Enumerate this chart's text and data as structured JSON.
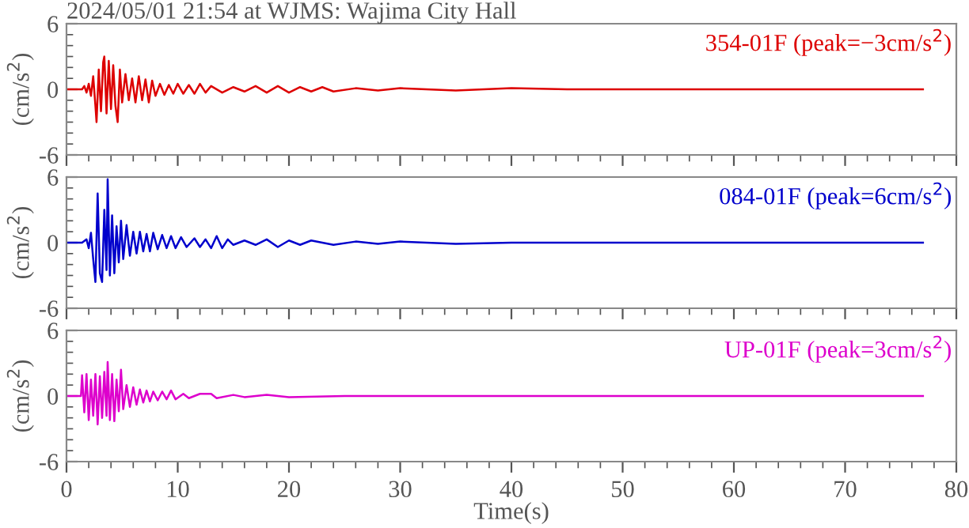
{
  "chart_data": [
    {
      "type": "line",
      "title": "2024/05/01 21:54 at WJMS: Wajima City Hall",
      "ylabel": "(cm/s$^{2}$)",
      "annotations": [
        "354-01F (peak=−3cm/s$^{2}$)"
      ],
      "xlim": [
        0,
        80
      ],
      "xticks": [
        0,
        10,
        20,
        30,
        40,
        50,
        60,
        70,
        80
      ],
      "ylim": [
        -6,
        6
      ],
      "yticks": [
        -6,
        0,
        6
      ],
      "tick_labels": "y",
      "series": [
        {
          "color": "#dd0000",
          "x": [
            0,
            1.4,
            1.6,
            1.8,
            2.0,
            2.2,
            2.4,
            2.6,
            2.7,
            2.9,
            3.1,
            3.3,
            3.4,
            3.6,
            3.8,
            4.0,
            4.2,
            4.4,
            4.6,
            4.8,
            5.0,
            5.3,
            5.6,
            5.9,
            6.2,
            6.5,
            6.8,
            7.1,
            7.4,
            7.7,
            8.0,
            8.4,
            8.8,
            9.2,
            9.6,
            10.0,
            10.5,
            11,
            11.5,
            12,
            12.5,
            13,
            14,
            15,
            16,
            17,
            18,
            19,
            20,
            21,
            22,
            23,
            24,
            26,
            28,
            30,
            35,
            40,
            45,
            50,
            60,
            77
          ],
          "values": [
            0,
            0,
            0.3,
            -0.3,
            0.5,
            -0.6,
            1.2,
            -1.5,
            -3.0,
            1.8,
            -2.0,
            2.5,
            3.0,
            -2.2,
            2.6,
            -1.8,
            2.2,
            -1.5,
            -3.0,
            1.8,
            -1.2,
            1.4,
            -1.0,
            1.0,
            -1.2,
            1.2,
            -1.0,
            0.9,
            -1.2,
            0.8,
            -0.6,
            0.5,
            -0.5,
            0.4,
            -0.4,
            0.5,
            -0.4,
            0.4,
            -0.4,
            0.5,
            -0.3,
            0.3,
            -0.3,
            0.2,
            -0.2,
            0.3,
            -0.3,
            0.3,
            -0.3,
            0.2,
            -0.2,
            0.2,
            -0.2,
            0.1,
            -0.1,
            0.1,
            -0.1,
            0.1,
            0,
            0,
            0,
            0
          ]
        }
      ]
    },
    {
      "type": "line",
      "ylabel": "(cm/s$^{2}$)",
      "annotations": [
        "084-01F (peak=6cm/s$^{2}$)"
      ],
      "xlim": [
        0,
        80
      ],
      "xticks": [
        0,
        10,
        20,
        30,
        40,
        50,
        60,
        70,
        80
      ],
      "ylim": [
        -6,
        6
      ],
      "yticks": [
        -6,
        0,
        6
      ],
      "tick_labels": "y",
      "series": [
        {
          "color": "#0000cc",
          "x": [
            0,
            1.4,
            1.8,
            2.0,
            2.2,
            2.4,
            2.6,
            2.8,
            3.0,
            3.2,
            3.4,
            3.6,
            3.7,
            3.9,
            4.1,
            4.3,
            4.5,
            4.7,
            4.9,
            5.1,
            5.4,
            5.7,
            6.0,
            6.3,
            6.6,
            6.9,
            7.2,
            7.5,
            7.8,
            8.2,
            8.6,
            9.0,
            9.4,
            9.8,
            10.3,
            10.8,
            11.5,
            12,
            12.5,
            13,
            13.5,
            14,
            14.5,
            15,
            16,
            17,
            18,
            19,
            20,
            21,
            22,
            24,
            26,
            28,
            30,
            35,
            40,
            50,
            77
          ],
          "values": [
            0,
            0,
            0.3,
            -0.5,
            0.9,
            -1.5,
            -3.6,
            4.5,
            -2.8,
            -3.6,
            3.0,
            -2.5,
            5.8,
            -3.0,
            2.5,
            -2.8,
            1.5,
            -1.8,
            2.0,
            -1.5,
            1.6,
            -1.2,
            1.0,
            -1.0,
            1.0,
            -0.8,
            0.8,
            -0.8,
            0.9,
            -0.6,
            0.7,
            -0.5,
            0.6,
            -0.5,
            0.5,
            -0.4,
            0.4,
            -0.4,
            0.3,
            -0.5,
            0.6,
            -0.5,
            0.3,
            -0.2,
            0.2,
            -0.2,
            0.3,
            -0.4,
            0.2,
            -0.2,
            0.2,
            -0.2,
            0.1,
            -0.1,
            0.1,
            -0.1,
            0,
            0,
            0
          ]
        }
      ]
    },
    {
      "type": "line",
      "xlabel": "Time(s)",
      "ylabel": "(cm/s$^{2}$)",
      "annotations": [
        "UP-01F (peak=3cm/s$^{2}$)"
      ],
      "xlim": [
        0,
        80
      ],
      "xticks": [
        0,
        10,
        20,
        30,
        40,
        50,
        60,
        70,
        80
      ],
      "ylim": [
        -6,
        6
      ],
      "yticks": [
        -6,
        0,
        6
      ],
      "series": [
        {
          "color": "#dd00cc",
          "x": [
            0,
            1.3,
            1.4,
            1.6,
            1.8,
            2.0,
            2.2,
            2.4,
            2.6,
            2.8,
            3.0,
            3.2,
            3.4,
            3.6,
            3.7,
            3.9,
            4.1,
            4.3,
            4.5,
            4.7,
            4.9,
            5.1,
            5.4,
            5.7,
            6.0,
            6.3,
            6.6,
            6.9,
            7.2,
            7.5,
            7.8,
            8.2,
            8.6,
            9.0,
            9.4,
            9.8,
            10.5,
            11,
            12,
            13,
            13.5,
            15,
            16,
            18,
            20,
            25,
            30,
            77
          ],
          "values": [
            0,
            0,
            1.9,
            -1.5,
            2.0,
            -2.2,
            1.5,
            -1.8,
            2.0,
            -2.6,
            1.8,
            -2.0,
            2.2,
            -1.8,
            3.1,
            -2.2,
            2.0,
            -2.3,
            1.5,
            -1.4,
            2.4,
            -1.2,
            1.0,
            -1.0,
            0.8,
            -0.8,
            0.6,
            -0.6,
            0.5,
            -0.5,
            0.4,
            -0.4,
            0.4,
            -0.3,
            0.5,
            -0.3,
            0.2,
            -0.2,
            0.2,
            0.2,
            -0.2,
            0.1,
            -0.1,
            0.1,
            -0.1,
            0,
            0,
            0
          ]
        }
      ]
    }
  ]
}
